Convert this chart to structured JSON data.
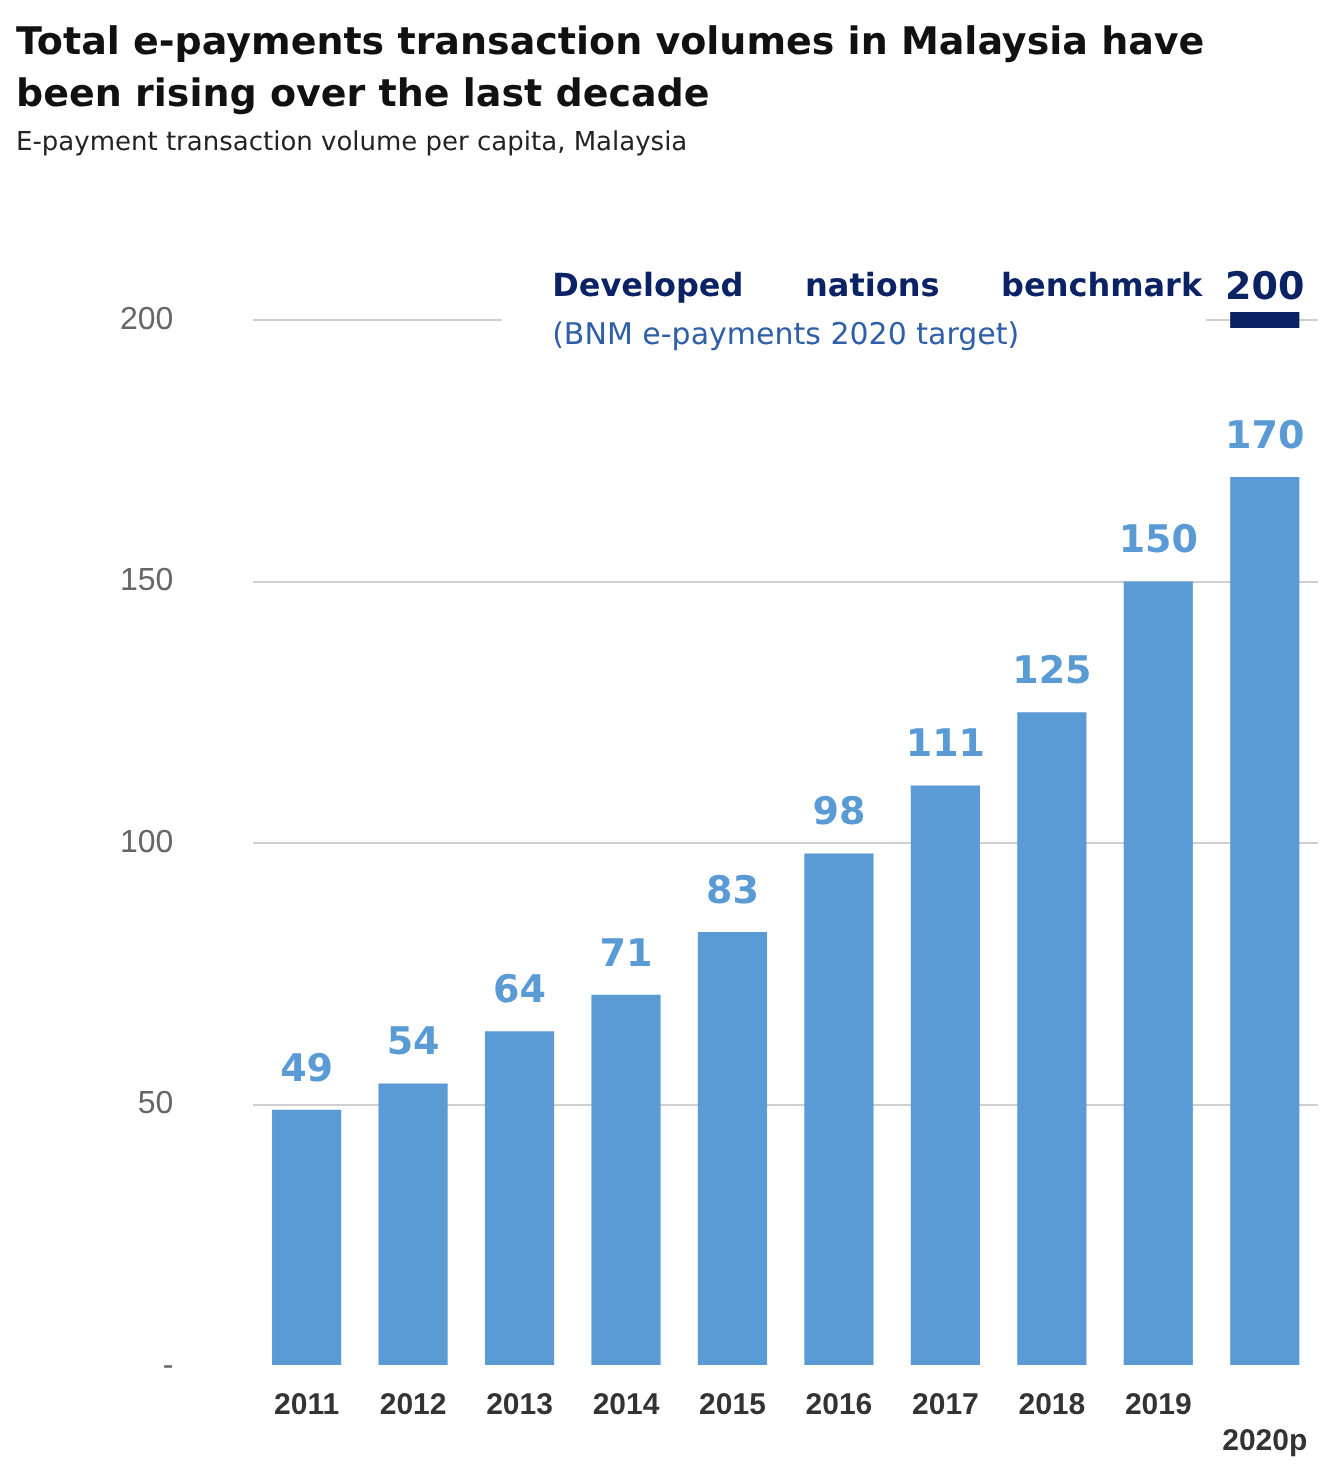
{
  "chart_data": {
    "type": "bar",
    "title": "Total e-payments transaction volumes in Malaysia have been rising over the last decade",
    "subtitle": "E-payment transaction volume per capita, Malaysia",
    "categories": [
      "2011",
      "2012",
      "2013",
      "2014",
      "2015",
      "2016",
      "2017",
      "2018",
      "2019",
      "2020p"
    ],
    "values": [
      49,
      54,
      64,
      71,
      83,
      98,
      111,
      125,
      150,
      170
    ],
    "color": "#5b9bd5",
    "ylim": [
      0,
      200
    ],
    "yticks": [
      {
        "value": 0,
        "label": "-"
      },
      50,
      100,
      150,
      200
    ],
    "grid": "y",
    "data_labels": true,
    "ref_lines": [
      {
        "axis": "y",
        "value": 200,
        "label": "200",
        "color": "#0b2265"
      }
    ],
    "annotations": [
      "Developed nations benchmark",
      "(BNM e-payments 2020 target)"
    ]
  }
}
